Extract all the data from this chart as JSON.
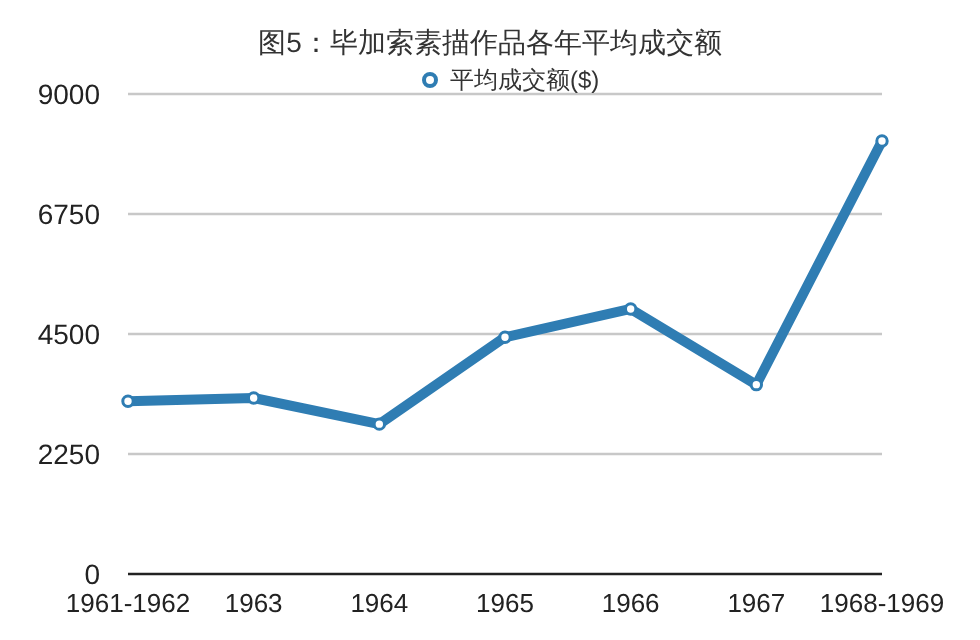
{
  "chart_data": {
    "type": "line",
    "title": "图5：毕加索素描作品各年平均成交额",
    "categories": [
      "1961-1962",
      "1963",
      "1964",
      "1965",
      "1966",
      "1967",
      "1968-1969"
    ],
    "series": [
      {
        "name": "平均成交额($)",
        "color": "#2f7db3",
        "values": [
          3240,
          3300,
          2810,
          4440,
          4970,
          3550,
          8120
        ]
      }
    ],
    "ylim": [
      0,
      9000
    ],
    "yticks": [
      0,
      2250,
      4500,
      6750,
      9000
    ],
    "grid": "y",
    "legend": "top",
    "marker": "circle",
    "line_style": "solid"
  }
}
